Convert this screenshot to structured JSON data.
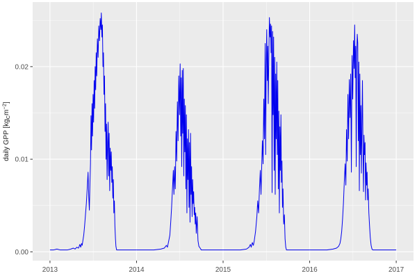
{
  "chart_data": {
    "type": "line",
    "title": "",
    "xlabel": "",
    "ylabel": "daily GPP [kg_C m^-2]",
    "ylabel_parts": {
      "prefix": "daily GPP [kg",
      "sub": "C",
      "mid": "m",
      "sup": "−2",
      "suffix": "]"
    },
    "legend": "none",
    "grid": true,
    "xlim": [
      2012.8,
      2017.2
    ],
    "ylim": [
      -0.00095,
      0.02697
    ],
    "x_ticks": {
      "values": [
        2013,
        2014,
        2015,
        2016,
        2017
      ],
      "labels": [
        "2013",
        "2014",
        "2015",
        "2016",
        "2017"
      ]
    },
    "y_ticks": {
      "values": [
        0,
        0.01,
        0.02
      ],
      "labels": [
        "0.00",
        "0.01",
        "0.02"
      ]
    },
    "x_minor": [
      2013.5,
      2014.5,
      2015.5,
      2016.5
    ],
    "y_minor": [
      0.005,
      0.015,
      0.025
    ],
    "colors": {
      "line": "#0000ee",
      "panel_bg": "#ebebeb",
      "grid_major": "#ffffff",
      "grid_minor": "#f5f5f5",
      "tick_mark": "#333333",
      "tick_text": "#4d4d4d",
      "axis_title": "#1a1a1a",
      "outer_bg": "#ffffff"
    },
    "series": [
      {
        "name": "daily GPP",
        "color": "#0000ee",
        "points": [
          [
            2013.0,
            0.0002
          ],
          [
            2013.04,
            0.0002
          ],
          [
            2013.08,
            0.0003
          ],
          [
            2013.12,
            0.0002
          ],
          [
            2013.16,
            0.0002
          ],
          [
            2013.2,
            0.0002
          ],
          [
            2013.24,
            0.0003
          ],
          [
            2013.27,
            0.0004
          ],
          [
            2013.29,
            0.0003
          ],
          [
            2013.31,
            0.0005
          ],
          [
            2013.33,
            0.0004
          ],
          [
            2013.345,
            0.0008
          ],
          [
            2013.355,
            0.0005
          ],
          [
            2013.365,
            0.0009
          ],
          [
            2013.372,
            0.0007
          ],
          [
            2013.38,
            0.0012
          ],
          [
            2013.39,
            0.0018
          ],
          [
            2013.4,
            0.0028
          ],
          [
            2013.41,
            0.004
          ],
          [
            2013.42,
            0.0052
          ],
          [
            2013.43,
            0.0068
          ],
          [
            2013.44,
            0.0086
          ],
          [
            2013.448,
            0.006
          ],
          [
            2013.455,
            0.0045
          ],
          [
            2013.462,
            0.0075
          ],
          [
            2013.468,
            0.0095
          ],
          [
            2013.474,
            0.0147
          ],
          [
            2013.48,
            0.011
          ],
          [
            2013.486,
            0.016
          ],
          [
            2013.492,
            0.0125
          ],
          [
            2013.498,
            0.017
          ],
          [
            2013.504,
            0.014
          ],
          [
            2013.51,
            0.0185
          ],
          [
            2013.516,
            0.0155
          ],
          [
            2013.522,
            0.02
          ],
          [
            2013.528,
            0.0175
          ],
          [
            2013.534,
            0.0215
          ],
          [
            2013.54,
            0.019
          ],
          [
            2013.548,
            0.023
          ],
          [
            2013.556,
            0.021
          ],
          [
            2013.564,
            0.0244
          ],
          [
            2013.572,
            0.0228
          ],
          [
            2013.58,
            0.0252
          ],
          [
            2013.588,
            0.024
          ],
          [
            2013.593,
            0.0258
          ],
          [
            2013.6,
            0.0232
          ],
          [
            2013.606,
            0.0245
          ],
          [
            2013.612,
            0.02
          ],
          [
            2013.618,
            0.0215
          ],
          [
            2013.624,
            0.017
          ],
          [
            2013.63,
            0.019
          ],
          [
            2013.636,
            0.013
          ],
          [
            2013.642,
            0.016
          ],
          [
            2013.648,
            0.01
          ],
          [
            2013.654,
            0.0138
          ],
          [
            2013.66,
            0.0078
          ],
          [
            2013.666,
            0.0118
          ],
          [
            2013.672,
            0.014
          ],
          [
            2013.678,
            0.0082
          ],
          [
            2013.684,
            0.0128
          ],
          [
            2013.69,
            0.0066
          ],
          [
            2013.696,
            0.0112
          ],
          [
            2013.702,
            0.0088
          ],
          [
            2013.708,
            0.0108
          ],
          [
            2013.714,
            0.0075
          ],
          [
            2013.72,
            0.0092
          ],
          [
            2013.726,
            0.0058
          ],
          [
            2013.732,
            0.0078
          ],
          [
            2013.738,
            0.0042
          ],
          [
            2013.744,
            0.0055
          ],
          [
            2013.75,
            0.0028
          ],
          [
            2013.756,
            0.0015
          ],
          [
            2013.762,
            0.0006
          ],
          [
            2013.77,
            0.0002
          ],
          [
            2013.8,
            0.0002
          ],
          [
            2013.9,
            0.0002
          ],
          [
            2014.0,
            0.0002
          ],
          [
            2014.1,
            0.0002
          ],
          [
            2014.2,
            0.0002
          ],
          [
            2014.28,
            0.0003
          ],
          [
            2014.32,
            0.0004
          ],
          [
            2014.345,
            0.0007
          ],
          [
            2014.357,
            0.0005
          ],
          [
            2014.368,
            0.001
          ],
          [
            2014.385,
            0.0018
          ],
          [
            2014.395,
            0.0032
          ],
          [
            2014.405,
            0.0048
          ],
          [
            2014.415,
            0.0068
          ],
          [
            2014.425,
            0.0088
          ],
          [
            2014.432,
            0.0062
          ],
          [
            2014.44,
            0.0092
          ],
          [
            2014.448,
            0.0068
          ],
          [
            2014.456,
            0.013
          ],
          [
            2014.464,
            0.0098
          ],
          [
            2014.472,
            0.0162
          ],
          [
            2014.48,
            0.012
          ],
          [
            2014.488,
            0.019
          ],
          [
            2014.496,
            0.0148
          ],
          [
            2014.504,
            0.0203
          ],
          [
            2014.51,
            0.0125
          ],
          [
            2014.516,
            0.0188
          ],
          [
            2014.522,
            0.0092
          ],
          [
            2014.528,
            0.0196
          ],
          [
            2014.534,
            0.0128
          ],
          [
            2014.54,
            0.0198
          ],
          [
            2014.546,
            0.0082
          ],
          [
            2014.552,
            0.0165
          ],
          [
            2014.558,
            0.0108
          ],
          [
            2014.564,
            0.0158
          ],
          [
            2014.57,
            0.0068
          ],
          [
            2014.576,
            0.0148
          ],
          [
            2014.582,
            0.0042
          ],
          [
            2014.588,
            0.0122
          ],
          [
            2014.594,
            0.0078
          ],
          [
            2014.6,
            0.0132
          ],
          [
            2014.606,
            0.0048
          ],
          [
            2014.612,
            0.0118
          ],
          [
            2014.618,
            0.0032
          ],
          [
            2014.624,
            0.0128
          ],
          [
            2014.63,
            0.0062
          ],
          [
            2014.636,
            0.0092
          ],
          [
            2014.642,
            0.0038
          ],
          [
            2014.648,
            0.0078
          ],
          [
            2014.654,
            0.0052
          ],
          [
            2014.66,
            0.0065
          ],
          [
            2014.666,
            0.004
          ],
          [
            2014.672,
            0.0048
          ],
          [
            2014.678,
            0.003
          ],
          [
            2014.684,
            0.0042
          ],
          [
            2014.69,
            0.002
          ],
          [
            2014.7,
            0.0038
          ],
          [
            2014.71,
            0.0012
          ],
          [
            2014.72,
            0.0006
          ],
          [
            2014.735,
            0.0004
          ],
          [
            2014.748,
            0.0002
          ],
          [
            2014.8,
            0.0002
          ],
          [
            2014.9,
            0.0002
          ],
          [
            2015.0,
            0.0002
          ],
          [
            2015.1,
            0.0002
          ],
          [
            2015.2,
            0.0002
          ],
          [
            2015.27,
            0.0003
          ],
          [
            2015.3,
            0.0005
          ],
          [
            2015.315,
            0.0008
          ],
          [
            2015.325,
            0.0005
          ],
          [
            2015.338,
            0.001
          ],
          [
            2015.35,
            0.0007
          ],
          [
            2015.36,
            0.0012
          ],
          [
            2015.375,
            0.0022
          ],
          [
            2015.39,
            0.0038
          ],
          [
            2015.4,
            0.0055
          ],
          [
            2015.41,
            0.0042
          ],
          [
            2015.42,
            0.0068
          ],
          [
            2015.43,
            0.0088
          ],
          [
            2015.438,
            0.0062
          ],
          [
            2015.446,
            0.0092
          ],
          [
            2015.454,
            0.012
          ],
          [
            2015.462,
            0.0095
          ],
          [
            2015.47,
            0.0165
          ],
          [
            2015.478,
            0.0122
          ],
          [
            2015.486,
            0.0225
          ],
          [
            2015.492,
            0.0105
          ],
          [
            2015.498,
            0.0198
          ],
          [
            2015.504,
            0.024
          ],
          [
            2015.51,
            0.0185
          ],
          [
            2015.516,
            0.0222
          ],
          [
            2015.522,
            0.016
          ],
          [
            2015.528,
            0.0208
          ],
          [
            2015.535,
            0.0253
          ],
          [
            2015.542,
            0.0232
          ],
          [
            2015.548,
            0.0246
          ],
          [
            2015.554,
            0.0215
          ],
          [
            2015.56,
            0.0244
          ],
          [
            2015.566,
            0.0064
          ],
          [
            2015.572,
            0.0238
          ],
          [
            2015.578,
            0.0148
          ],
          [
            2015.584,
            0.0232
          ],
          [
            2015.59,
            0.0088
          ],
          [
            2015.596,
            0.021
          ],
          [
            2015.602,
            0.0062
          ],
          [
            2015.608,
            0.0192
          ],
          [
            2015.614,
            0.0122
          ],
          [
            2015.62,
            0.0205
          ],
          [
            2015.626,
            0.0105
          ],
          [
            2015.632,
            0.0185
          ],
          [
            2015.638,
            0.0068
          ],
          [
            2015.644,
            0.0152
          ],
          [
            2015.65,
            0.0042
          ],
          [
            2015.656,
            0.0135
          ],
          [
            2015.662,
            0.0088
          ],
          [
            2015.668,
            0.0148
          ],
          [
            2015.674,
            0.0075
          ],
          [
            2015.68,
            0.0098
          ],
          [
            2015.686,
            0.0048
          ],
          [
            2015.692,
            0.0068
          ],
          [
            2015.7,
            0.003
          ],
          [
            2015.708,
            0.004
          ],
          [
            2015.716,
            0.0014
          ],
          [
            2015.724,
            0.0005
          ],
          [
            2015.732,
            0.0002
          ],
          [
            2015.8,
            0.0002
          ],
          [
            2015.9,
            0.0002
          ],
          [
            2016.0,
            0.0002
          ],
          [
            2016.1,
            0.0002
          ],
          [
            2016.2,
            0.0002
          ],
          [
            2016.27,
            0.0003
          ],
          [
            2016.31,
            0.0004
          ],
          [
            2016.335,
            0.0006
          ],
          [
            2016.35,
            0.0009
          ],
          [
            2016.36,
            0.0014
          ],
          [
            2016.37,
            0.0022
          ],
          [
            2016.38,
            0.0035
          ],
          [
            2016.39,
            0.0052
          ],
          [
            2016.4,
            0.0075
          ],
          [
            2016.41,
            0.0095
          ],
          [
            2016.418,
            0.0072
          ],
          [
            2016.426,
            0.0132
          ],
          [
            2016.434,
            0.0098
          ],
          [
            2016.442,
            0.017
          ],
          [
            2016.45,
            0.0122
          ],
          [
            2016.458,
            0.0186
          ],
          [
            2016.466,
            0.0145
          ],
          [
            2016.474,
            0.0192
          ],
          [
            2016.482,
            0.0086
          ],
          [
            2016.49,
            0.0212
          ],
          [
            2016.498,
            0.0165
          ],
          [
            2016.506,
            0.0228
          ],
          [
            2016.514,
            0.0198
          ],
          [
            2016.52,
            0.0245
          ],
          [
            2016.526,
            0.0188
          ],
          [
            2016.532,
            0.0222
          ],
          [
            2016.538,
            0.0092
          ],
          [
            2016.544,
            0.0215
          ],
          [
            2016.55,
            0.0235
          ],
          [
            2016.556,
            0.0225
          ],
          [
            2016.562,
            0.012
          ],
          [
            2016.568,
            0.0205
          ],
          [
            2016.574,
            0.0066
          ],
          [
            2016.58,
            0.0192
          ],
          [
            2016.586,
            0.0105
          ],
          [
            2016.592,
            0.0158
          ],
          [
            2016.598,
            0.0085
          ],
          [
            2016.604,
            0.0136
          ],
          [
            2016.61,
            0.0185
          ],
          [
            2016.616,
            0.0112
          ],
          [
            2016.622,
            0.0065
          ],
          [
            2016.628,
            0.0126
          ],
          [
            2016.634,
            0.0105
          ],
          [
            2016.64,
            0.0118
          ],
          [
            2016.646,
            0.0056
          ],
          [
            2016.652,
            0.0096
          ],
          [
            2016.658,
            0.0072
          ],
          [
            2016.664,
            0.0086
          ],
          [
            2016.67,
            0.0056
          ],
          [
            2016.676,
            0.0068
          ],
          [
            2016.684,
            0.0042
          ],
          [
            2016.692,
            0.0028
          ],
          [
            2016.7,
            0.0016
          ],
          [
            2016.71,
            0.0007
          ],
          [
            2016.72,
            0.0003
          ],
          [
            2016.73,
            0.0002
          ],
          [
            2016.8,
            0.0002
          ],
          [
            2016.9,
            0.0002
          ],
          [
            2017.0,
            0.0002
          ]
        ]
      }
    ]
  }
}
